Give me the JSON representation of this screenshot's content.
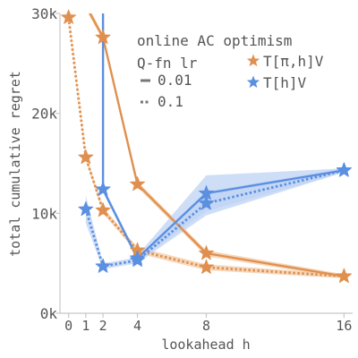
{
  "colors": {
    "orange": "#e0904e",
    "blue": "#5b8fe0",
    "band_orange": "#f2c9a4",
    "band_blue": "#bfd3f4",
    "axis": "#c8c8c8",
    "text": "#555555"
  },
  "chart_data": {
    "type": "line",
    "xlabel": "lookahead h",
    "ylabel": "total cumulative regret",
    "xlim": [
      -0.5,
      16.5
    ],
    "ylim": [
      0,
      30000
    ],
    "xticks": [
      0,
      1,
      2,
      4,
      8,
      16
    ],
    "xtick_labels": [
      "0",
      "1",
      "2",
      "4",
      "8",
      "16"
    ],
    "yticks": [
      0,
      10000,
      20000,
      30000
    ],
    "ytick_labels": [
      "0k",
      "10k",
      "20k",
      "30k"
    ],
    "grid": false,
    "legend": {
      "position": "top-right",
      "title": "online AC optimism",
      "lr_title": "Q-fn lr",
      "lr_entries": [
        {
          "label": "0.01",
          "style": "solid"
        },
        {
          "label": "0.1",
          "style": "dotted"
        }
      ],
      "operator_entries": [
        {
          "label": "T[π,h]V",
          "color_key": "orange"
        },
        {
          "label": "T[h]V",
          "color_key": "blue"
        }
      ]
    },
    "series": [
      {
        "operator": "T[π,h]V",
        "lr": "0.01",
        "color_key": "orange",
        "style": "solid",
        "x": [
          0,
          2,
          4,
          8,
          16
        ],
        "y": [
          34000,
          27600,
          12900,
          6000,
          3700
        ],
        "y_lo": [
          33500,
          27300,
          12600,
          5700,
          3500
        ],
        "y_hi": [
          34500,
          27900,
          13200,
          6300,
          3900
        ],
        "markers": [
          false,
          true,
          true,
          true,
          true
        ]
      },
      {
        "operator": "T[π,h]V",
        "lr": "0.1",
        "color_key": "orange",
        "style": "dotted",
        "x": [
          0,
          1,
          2,
          4,
          8,
          16
        ],
        "y": [
          29600,
          15600,
          10300,
          6300,
          4600,
          3700
        ],
        "y_lo": [
          29400,
          15300,
          10000,
          6000,
          4300,
          3500
        ],
        "y_hi": [
          29800,
          15900,
          10600,
          6600,
          4900,
          3900
        ],
        "markers": [
          true,
          true,
          true,
          true,
          true,
          true
        ]
      },
      {
        "operator": "T[h]V",
        "lr": "0.01",
        "color_key": "blue",
        "style": "solid",
        "x": [
          2,
          2,
          4,
          8,
          16
        ],
        "y": [
          34000,
          12400,
          5500,
          12000,
          14300
        ],
        "y_lo": [
          34000,
          12100,
          5200,
          10200,
          14100
        ],
        "y_hi": [
          34000,
          12700,
          5800,
          13800,
          14500
        ],
        "markers": [
          false,
          true,
          true,
          true,
          true
        ]
      },
      {
        "operator": "T[h]V",
        "lr": "0.1",
        "color_key": "blue",
        "style": "dotted",
        "x": [
          1,
          2,
          4,
          8,
          16
        ],
        "y": [
          10400,
          4700,
          5300,
          11000,
          14300
        ],
        "y_lo": [
          9000,
          4400,
          5000,
          9800,
          14100
        ],
        "y_hi": [
          11800,
          5000,
          5600,
          12200,
          14500
        ],
        "markers": [
          true,
          true,
          true,
          true,
          true
        ]
      }
    ]
  }
}
